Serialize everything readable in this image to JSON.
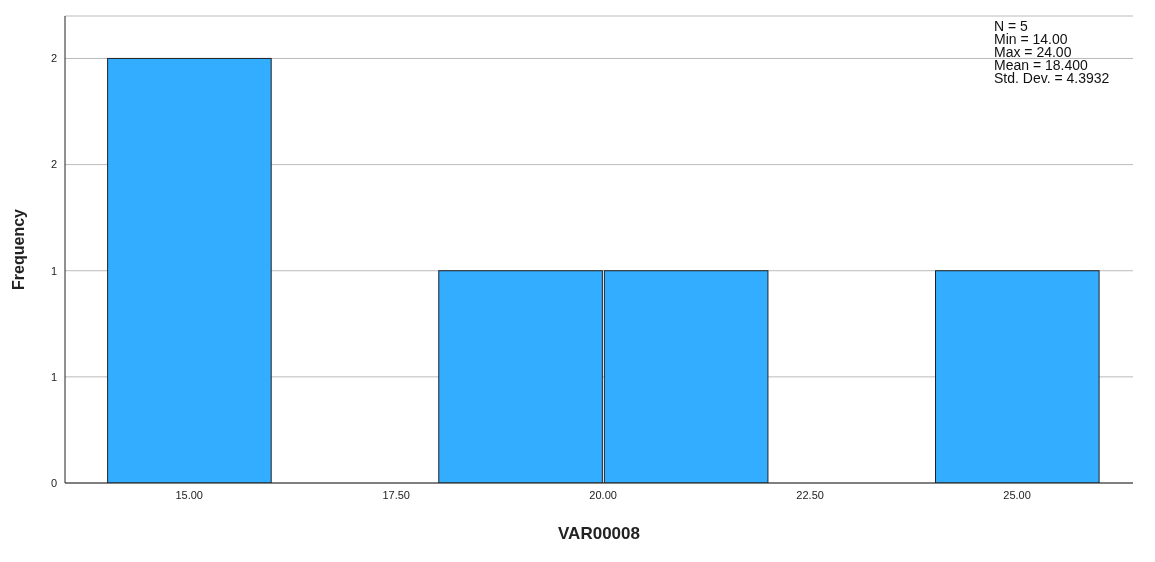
{
  "chart_data": {
    "type": "histogram",
    "xlabel": "VAR00008",
    "ylabel": "Frequency",
    "bins": [
      14,
      16,
      18,
      20,
      22,
      24,
      26
    ],
    "values": [
      2,
      0,
      1,
      1,
      0,
      1
    ],
    "color": "#33adff",
    "xlim": [
      13.5,
      26.4
    ],
    "xticks": [
      {
        "value": 15,
        "label": "15.00"
      },
      {
        "value": 17.5,
        "label": "17.50"
      },
      {
        "value": 20,
        "label": "20.00"
      },
      {
        "value": 22.5,
        "label": "22.50"
      },
      {
        "value": 25,
        "label": "25.00"
      }
    ],
    "ylim": [
      0,
      2.2
    ],
    "yticks": [
      0,
      {
        "value": 0.5,
        "label": "1"
      },
      1,
      {
        "value": 1.5,
        "label": "2"
      },
      2
    ],
    "grid": "y",
    "annotations": [
      "N = 5",
      "Min = 14.00",
      "Max = 24.00",
      "Mean = 18.400",
      "Std. Dev. = 4.3932"
    ]
  }
}
